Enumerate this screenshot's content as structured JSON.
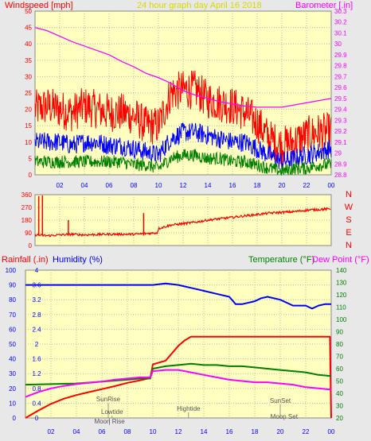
{
  "colors": {
    "background": "#e8e8e8",
    "plot_bg": "#ffffc0",
    "grid": "#b8b8b8",
    "wind_gust": "#ff0000",
    "wind_avg": "#0000ff",
    "wind_low": "#008000",
    "barometer": "#ff00ff",
    "direction": "#ff0000",
    "rain": "#ff0000",
    "humidity": "#0000ff",
    "temperature": "#008000",
    "dew_point": "#ff00ff",
    "annotation": "#808080"
  },
  "chart_data": [
    {
      "type": "line",
      "title": "24 hour graph day  April 16 2018",
      "ylabel_left": "Windspeed [mph]",
      "ylabel_right": "Barometer [.in]",
      "x_ticks": [
        "02",
        "04",
        "06",
        "08",
        "10",
        "12",
        "14",
        "16",
        "18",
        "20",
        "22",
        "00"
      ],
      "x_range_hours": [
        0,
        24
      ],
      "ylim_left": [
        0,
        50
      ],
      "yticks_left": [
        "0",
        "5",
        "10",
        "15",
        "20",
        "25",
        "30",
        "35",
        "40",
        "45",
        "50"
      ],
      "ylim_right": [
        28.8,
        30.3
      ],
      "yticks_right": [
        "28.8",
        "28.9",
        "29",
        "29.1",
        "29.2",
        "29.3",
        "29.4",
        "29.5",
        "29.6",
        "29.7",
        "29.8",
        "29.9",
        "30",
        "30.1",
        "30.2",
        "30.3"
      ],
      "series": [
        {
          "key": "gust",
          "axis": "left",
          "x": [
            0,
            1,
            2,
            3,
            4,
            5,
            6,
            7,
            8,
            9,
            10,
            11,
            12,
            13,
            14,
            15,
            16,
            17,
            18,
            19,
            20,
            21,
            22,
            23,
            24
          ],
          "values": [
            20,
            21,
            20,
            19,
            21,
            20,
            19,
            19,
            18,
            15,
            15,
            25,
            26,
            26,
            23,
            22,
            21,
            19,
            16,
            11,
            9,
            10,
            12,
            13,
            13
          ],
          "noise": 6
        },
        {
          "key": "avg",
          "axis": "left",
          "x": [
            0,
            1,
            2,
            3,
            4,
            5,
            6,
            7,
            8,
            9,
            10,
            11,
            12,
            13,
            14,
            15,
            16,
            17,
            18,
            19,
            20,
            21,
            22,
            23,
            24
          ],
          "values": [
            10,
            10,
            10,
            9,
            10,
            10,
            9,
            9,
            8,
            7,
            6,
            11,
            13,
            13,
            12,
            11,
            10,
            10,
            8,
            6,
            4,
            5,
            6,
            7,
            8
          ],
          "noise": 3
        },
        {
          "key": "low",
          "axis": "left",
          "x": [
            0,
            1,
            2,
            3,
            4,
            5,
            6,
            7,
            8,
            9,
            10,
            11,
            12,
            13,
            14,
            15,
            16,
            17,
            18,
            19,
            20,
            21,
            22,
            23,
            24
          ],
          "values": [
            4,
            4,
            4,
            4,
            4,
            4,
            4,
            4,
            3,
            3,
            2,
            5,
            6,
            6,
            5,
            5,
            4,
            4,
            3,
            2,
            1,
            2,
            2,
            3,
            3
          ],
          "noise": 2
        },
        {
          "key": "barometer",
          "axis": "right",
          "x": [
            0,
            1,
            2,
            3,
            4,
            5,
            6,
            7,
            8,
            9,
            10,
            11,
            12,
            13,
            14,
            15,
            16,
            17,
            18,
            19,
            20,
            21,
            22,
            23,
            24
          ],
          "values": [
            30.15,
            30.12,
            30.07,
            30.02,
            29.98,
            29.94,
            29.9,
            29.84,
            29.79,
            29.73,
            29.69,
            29.64,
            29.57,
            29.53,
            29.5,
            29.47,
            29.45,
            29.43,
            29.42,
            29.42,
            29.42,
            29.44,
            29.46,
            29.48,
            29.5
          ]
        }
      ]
    },
    {
      "type": "line",
      "ylabel": "Wind direction",
      "ylim": [
        0,
        360
      ],
      "yticks": [
        "0",
        "90",
        "180",
        "270",
        "360"
      ],
      "compass_labels": [
        "N",
        "W",
        "S",
        "E",
        "N"
      ],
      "series": [
        {
          "key": "direction",
          "x": [
            0,
            1,
            2,
            3,
            4,
            5,
            6,
            7,
            8,
            9,
            9.9,
            10,
            11,
            12,
            13,
            14,
            15,
            16,
            17,
            18,
            19,
            20,
            21,
            22,
            23,
            24
          ],
          "values": [
            75,
            70,
            75,
            80,
            75,
            78,
            80,
            80,
            80,
            85,
            90,
            120,
            145,
            155,
            165,
            180,
            190,
            200,
            210,
            220,
            230,
            235,
            240,
            250,
            255,
            260
          ],
          "noise": 8
        }
      ]
    },
    {
      "type": "line",
      "ylabel_rain": "Rainfall (.in)",
      "ylabel_humidity": "Humidity (%)",
      "ylabel_temperature": "Temperature (°F)",
      "ylabel_dewpoint": "Dew Point (°F)",
      "ylim_rain": [
        0,
        4
      ],
      "yticks_rain": [
        "0",
        "0.4",
        "0.8",
        "1.2",
        "1.6",
        "2",
        "2.4",
        "2.8",
        "3.2",
        "3.6",
        "4"
      ],
      "ylim_humidity": [
        0,
        100
      ],
      "yticks_humidity": [
        "0",
        "10",
        "20",
        "30",
        "40",
        "50",
        "60",
        "70",
        "80",
        "90",
        "100"
      ],
      "ylim_temp": [
        20,
        140
      ],
      "yticks_temp": [
        "20",
        "30",
        "40",
        "50",
        "60",
        "70",
        "80",
        "90",
        "100",
        "110",
        "120",
        "130",
        "140"
      ],
      "series": [
        {
          "key": "humidity",
          "x": [
            0,
            2,
            4,
            6,
            8,
            10,
            11,
            12,
            12.5,
            13,
            14,
            15,
            16,
            16.5,
            17,
            18,
            18.5,
            19,
            20,
            21,
            22,
            22.5,
            23,
            23.5,
            24
          ],
          "values": [
            90,
            90,
            90,
            90,
            90,
            90,
            91,
            90,
            89,
            88,
            86,
            84,
            82,
            77,
            77,
            79,
            81,
            82,
            80,
            76,
            76,
            74,
            76,
            77,
            77
          ]
        },
        {
          "key": "rain",
          "x": [
            0,
            1,
            2,
            3,
            4,
            5,
            6,
            7,
            8,
            9,
            9.8,
            10,
            11,
            12,
            12.5,
            13,
            14,
            15,
            16,
            17,
            18,
            19,
            20,
            21,
            22,
            23,
            23.9,
            24
          ],
          "values": [
            0,
            0.2,
            0.38,
            0.52,
            0.62,
            0.7,
            0.78,
            0.86,
            0.95,
            1.02,
            1.08,
            1.45,
            1.55,
            1.95,
            2.1,
            2.2,
            2.2,
            2.2,
            2.2,
            2.2,
            2.2,
            2.2,
            2.2,
            2.2,
            2.2,
            2.2,
            2.2,
            0
          ]
        },
        {
          "key": "temperature",
          "x": [
            0,
            2,
            4,
            6,
            8,
            9,
            9.8,
            10,
            11,
            12,
            13,
            14,
            15,
            16,
            17,
            18,
            19,
            20,
            21,
            22,
            23,
            24
          ],
          "values": [
            47,
            47.5,
            48,
            49.5,
            51,
            52,
            52,
            60,
            62,
            63,
            64,
            63,
            63,
            62,
            62,
            61,
            60,
            59,
            58,
            57,
            55,
            54
          ]
        },
        {
          "key": "dewpoint",
          "x": [
            0,
            1,
            2,
            3,
            4,
            5,
            6,
            7,
            8,
            9,
            9.8,
            10,
            11,
            12,
            13,
            14,
            15,
            16,
            17,
            18,
            19,
            20,
            21,
            22,
            23,
            24
          ],
          "values": [
            37,
            41,
            44,
            46,
            47.5,
            48.5,
            49.5,
            51,
            52,
            53,
            53,
            58,
            59,
            59,
            57,
            55,
            53,
            51,
            50,
            49,
            49,
            48,
            47,
            45,
            44,
            43
          ]
        }
      ],
      "annotations": [
        {
          "label": "SunRise",
          "hour": 6.5
        },
        {
          "label": "Lowtide",
          "hour": 6.8
        },
        {
          "label": "Moon Rise",
          "hour": 6.6
        },
        {
          "label": "Hightide",
          "hour": 12.8
        },
        {
          "label": "SunSet",
          "hour": 20.0
        },
        {
          "label": "Moon Set",
          "hour": 20.3
        }
      ]
    }
  ]
}
